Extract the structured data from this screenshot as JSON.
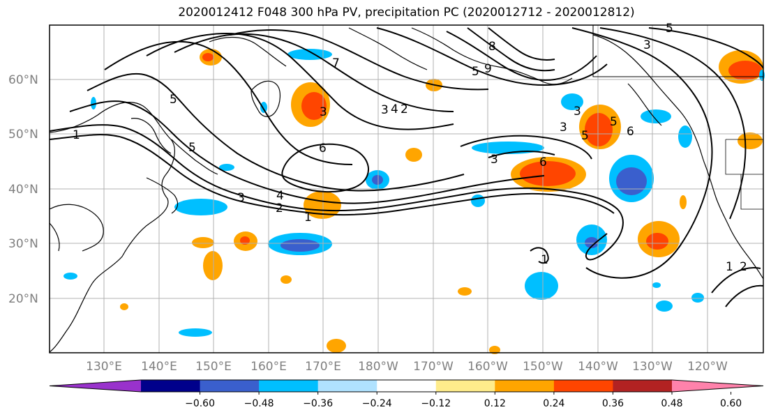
{
  "title": "2020012412 F048 300 hPa PV, precipitation PC (2020012712 - 2020012812)",
  "lat_labels": [
    "60°N",
    "50°N",
    "40°N",
    "30°N",
    "20°N"
  ],
  "lon_labels": [
    "130°E",
    "140°E",
    "150°E",
    "160°E",
    "170°E",
    "180°W",
    "170°W",
    "160°W",
    "150°W",
    "140°W",
    "130°W",
    "120°W"
  ],
  "colorbar": {
    "colors": [
      "#9932CC",
      "#00008B",
      "#3A5FCD",
      "#00BFFF",
      "#B0E2FF",
      "#FFFFFF",
      "#FFEC8B",
      "#FFA500",
      "#FF4500",
      "#B22222",
      "#FF82AB"
    ],
    "tick_labels": [
      "−0.60",
      "−0.48",
      "−0.36",
      "−0.24",
      "−0.12",
      "0.12",
      "0.24",
      "0.36",
      "0.48",
      "0.60"
    ]
  },
  "contour_labels": [
    "1",
    "2",
    "3",
    "4",
    "5",
    "6",
    "5",
    "3",
    "2",
    "1",
    "3",
    "4",
    "5",
    "6",
    "7",
    "8",
    "9",
    "5",
    "3",
    "3",
    "5",
    "6",
    "3",
    "5",
    "3",
    "1",
    "2",
    "1"
  ]
}
